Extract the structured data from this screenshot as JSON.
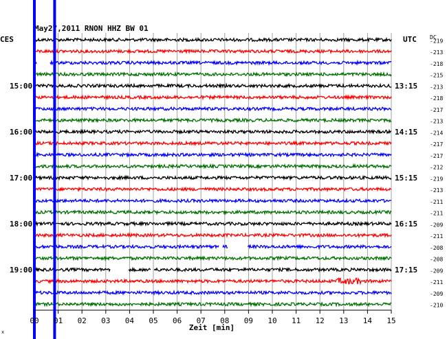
{
  "chart_data": {
    "type": "line",
    "title": "May27,2011   RNON HHZ BW 01",
    "left_axis_label": "CES",
    "right_axis_label": "UTC",
    "dc_header": "DC",
    "xlabel": "Zeit [min]",
    "xlim": [
      0,
      15
    ],
    "x_ticks": [
      "00",
      "01",
      "02",
      "03",
      "04",
      "05",
      "06",
      "07",
      "08",
      "09",
      "10",
      "11",
      "12",
      "13",
      "14",
      "15"
    ],
    "grid": true,
    "trace_colors": [
      "#000000",
      "#ff0000",
      "#0000ff",
      "#007000"
    ],
    "marker_color": "#0000ff",
    "marker_minutes": [
      0,
      0.85
    ],
    "traces_count": 24,
    "dc_values": [
      "-219",
      "-213",
      "-218",
      "-215",
      "-213",
      "-218",
      "-217",
      "-213",
      "-214",
      "-217",
      "-217",
      "-212",
      "-219",
      "-213",
      "-211",
      "-211",
      "-209",
      "-211",
      "-208",
      "-208",
      "-209",
      "-211",
      "-209",
      "-210"
    ],
    "hour_labels_left": [
      {
        "trace": 4,
        "text": "15:00"
      },
      {
        "trace": 8,
        "text": "16:00"
      },
      {
        "trace": 12,
        "text": "17:00"
      },
      {
        "trace": 16,
        "text": "18:00"
      },
      {
        "trace": 20,
        "text": "19:00"
      }
    ],
    "hour_labels_right": [
      {
        "trace": 4,
        "text": "13:15"
      },
      {
        "trace": 8,
        "text": "14:15"
      },
      {
        "trace": 12,
        "text": "15:15"
      },
      {
        "trace": 16,
        "text": "16:15"
      },
      {
        "trace": 20,
        "text": "17:15"
      }
    ],
    "gaps": [
      {
        "trace": 2,
        "from": 0.1,
        "to": 0.65
      },
      {
        "trace": 18,
        "from": 7.75,
        "to": 7.9
      },
      {
        "trace": 18,
        "from": 8.15,
        "to": 8.95
      },
      {
        "trace": 20,
        "from": 3.2,
        "to": 3.95
      },
      {
        "trace": 20,
        "from": 4.9,
        "to": 5.0
      }
    ],
    "events": [
      {
        "trace": 21,
        "at": 13.2,
        "width": 1.0
      }
    ],
    "corner_mark": "x"
  }
}
